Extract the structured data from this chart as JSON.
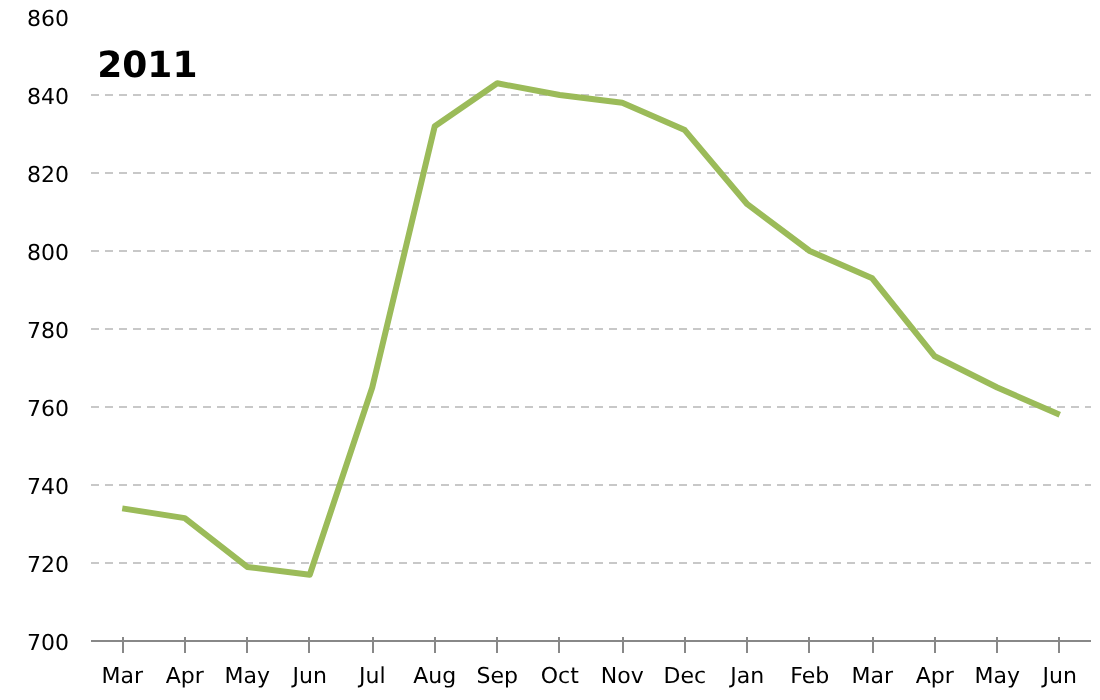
{
  "chart_data": {
    "type": "line",
    "title": "2011",
    "categories": [
      "Mar",
      "Apr",
      "May",
      "Jun",
      "Jul",
      "Aug",
      "Sep",
      "Oct",
      "Nov",
      "Dec",
      "Jan",
      "Feb",
      "Mar",
      "Apr",
      "May",
      "Jun"
    ],
    "series": [
      {
        "color": "#9bbb59",
        "values": [
          734,
          731.5,
          719,
          717,
          765,
          832,
          843,
          840,
          838,
          831,
          812,
          800,
          793,
          773,
          765,
          758
        ]
      }
    ],
    "ylim": [
      700,
      860
    ],
    "yticks": [
      700,
      720,
      740,
      760,
      780,
      800,
      820,
      840,
      860
    ],
    "grid": "y",
    "marker": "none",
    "line_style": "solid"
  }
}
